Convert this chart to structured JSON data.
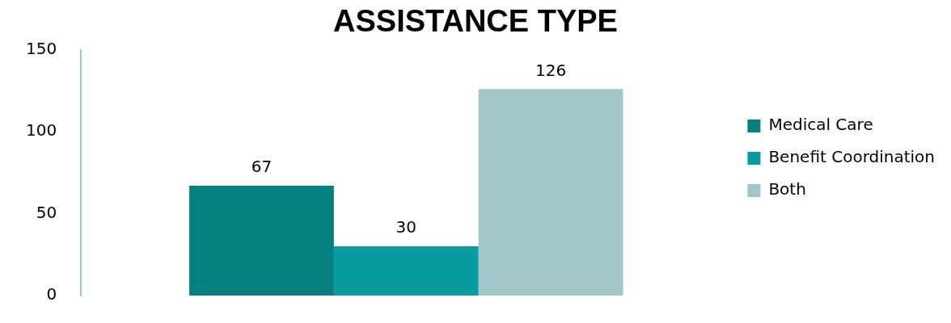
{
  "chart_data": {
    "type": "bar",
    "title": "ASSISTANCE TYPE",
    "categories": [
      null
    ],
    "series": [
      {
        "name": "Medical Care",
        "color": "#067f80",
        "values": [
          67
        ]
      },
      {
        "name": "Benefit Coordination",
        "color": "#0a9ba0",
        "values": [
          30
        ]
      },
      {
        "name": "Both",
        "color": "#a0c6c8",
        "values": [
          126
        ]
      }
    ],
    "ylim": [
      0,
      150
    ],
    "yticks": [
      0,
      50,
      100,
      150
    ],
    "grid": false,
    "legend": "right",
    "data_labels": true,
    "tick_labels": "y"
  }
}
